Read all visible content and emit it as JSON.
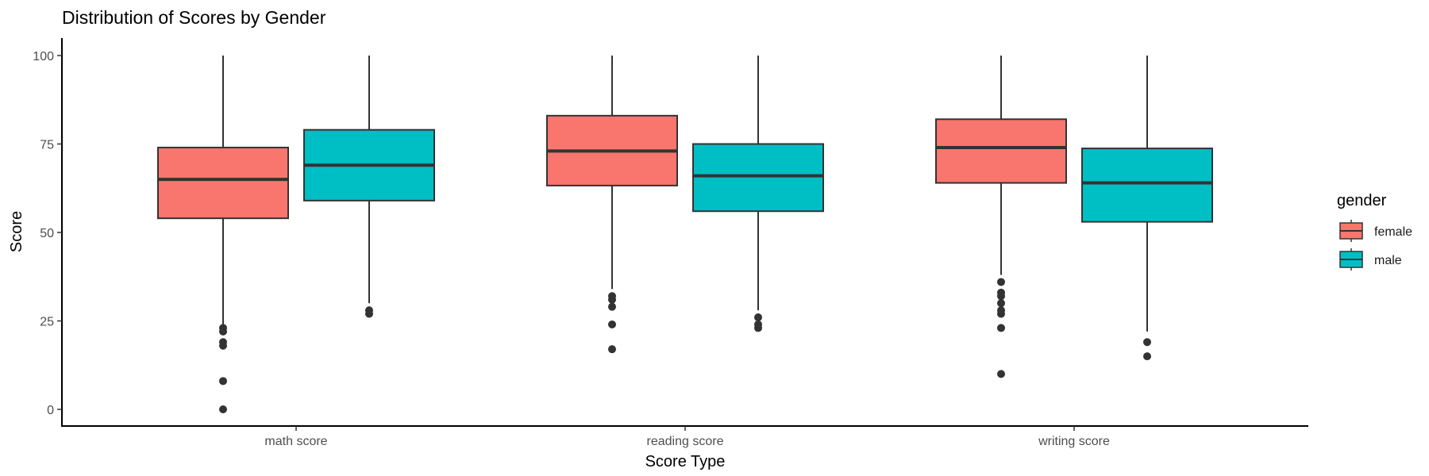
{
  "chart_data": {
    "type": "boxplot",
    "title": "Distribution of Scores by Gender",
    "xlabel": "Score Type",
    "ylabel": "Score",
    "ylim": [
      0,
      100
    ],
    "yticks": [
      0,
      25,
      50,
      75,
      100
    ],
    "categories": [
      "math score",
      "reading score",
      "writing score"
    ],
    "grid": false,
    "legend": {
      "title": "gender",
      "position": "right"
    },
    "series": [
      {
        "name": "female",
        "color": "#F8766D",
        "boxes": [
          {
            "whisker_low": 24,
            "q1": 54,
            "median": 65,
            "q3": 74,
            "whisker_high": 100,
            "outliers": [
              0,
              8,
              18,
              19,
              22,
              23
            ]
          },
          {
            "whisker_low": 34,
            "q1": 63.25,
            "median": 73,
            "q3": 83,
            "whisker_high": 100,
            "outliers": [
              17,
              24,
              29,
              31,
              32
            ]
          },
          {
            "whisker_low": 38,
            "q1": 64,
            "median": 74,
            "q3": 82,
            "whisker_high": 100,
            "outliers": [
              10,
              23,
              27,
              28,
              30,
              32,
              33,
              36
            ]
          }
        ]
      },
      {
        "name": "male",
        "color": "#00BFC4",
        "boxes": [
          {
            "whisker_low": 30,
            "q1": 59,
            "median": 69,
            "q3": 79,
            "whisker_high": 100,
            "outliers": [
              27,
              28
            ]
          },
          {
            "whisker_low": 28,
            "q1": 56,
            "median": 66,
            "q3": 75,
            "whisker_high": 100,
            "outliers": [
              23,
              24,
              26
            ]
          },
          {
            "whisker_low": 22,
            "q1": 53,
            "median": 64,
            "q3": 73.75,
            "whisker_high": 100,
            "outliers": [
              15,
              19
            ]
          }
        ]
      }
    ]
  }
}
